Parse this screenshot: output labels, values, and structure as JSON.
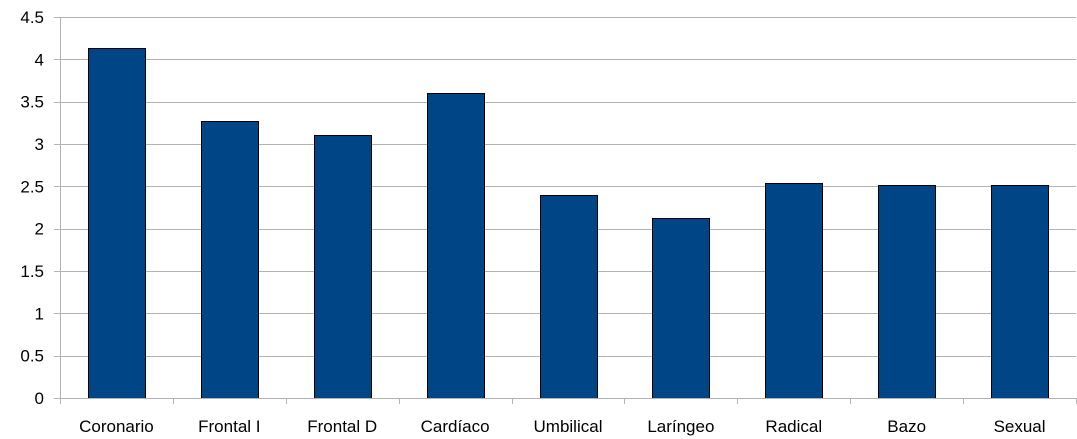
{
  "chart_data": {
    "type": "bar",
    "categories": [
      "Coronario",
      "Frontal I",
      "Frontal D",
      "Cardíaco",
      "Umbilical",
      "Laríngeo",
      "Radical",
      "Bazo",
      "Sexual"
    ],
    "values": [
      4.13,
      3.27,
      3.11,
      3.6,
      2.4,
      2.13,
      2.54,
      2.51,
      2.51
    ],
    "ylim": [
      0,
      4.5
    ],
    "yticks": [
      0,
      0.5,
      1,
      1.5,
      2,
      2.5,
      3,
      3.5,
      4,
      4.5
    ],
    "ytick_labels": [
      "0",
      "0.5",
      "1",
      "1.5",
      "2",
      "2.5",
      "3",
      "3.5",
      "4",
      "4.5"
    ],
    "bar_color": "#004586",
    "grid": true,
    "legend": false
  }
}
